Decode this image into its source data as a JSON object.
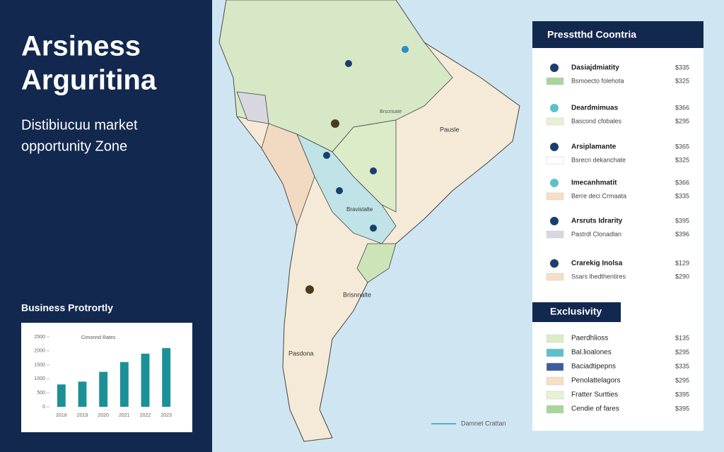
{
  "header": {
    "title_lines": [
      "Arsiness",
      "Arguritina"
    ],
    "subtitle_lines": [
      "Distibiucuu market",
      "opportunity Zone"
    ]
  },
  "sidebar_chart": {
    "title": "Business Protrortly",
    "chart_data": {
      "type": "bar",
      "legend": "Cimonnd Rates",
      "categories": [
        "2018",
        "2019",
        "2020",
        "2021",
        "2022",
        "2023"
      ],
      "values": [
        800,
        900,
        1250,
        1600,
        1900,
        2100
      ],
      "color": "#1b9197",
      "ylim": [
        0,
        2500
      ],
      "yticks": [
        0,
        500,
        1000,
        1500,
        2000,
        2500
      ]
    }
  },
  "map": {
    "labels": [
      "Pausle",
      "Brscrisate",
      "Bravistalte",
      "Brisnnalte",
      "Pasdona"
    ],
    "caption": "Damnet Crattan"
  },
  "panel": {
    "title": "Presstthd Coontria",
    "entries": [
      {
        "name": "Dasiajdmiatity",
        "detail": "Bsmoecto folehota",
        "price": "$335",
        "price2": "$325"
      },
      {
        "name": "Deardmimuas",
        "detail": "Bascond cfobales",
        "price": "$366",
        "price2": "$295"
      },
      {
        "name": "Arsiplamante",
        "detail": "Bsrecn dekanchate",
        "price": "$365",
        "price2": "$325"
      },
      {
        "name": "Imecanhmatit",
        "detail": "Berre deci Crmaata",
        "price": "$366",
        "price2": "$335"
      },
      {
        "name": "Arsruts Idrarity",
        "detail": "Pastrdl Clonadlan",
        "price": "$395",
        "price2": "$396"
      },
      {
        "name": "Crarekig Inolsa",
        "detail": "Ssars lhedthentires",
        "price": "$129",
        "price2": "$290"
      }
    ],
    "exclusivity_title": "Exclusivity",
    "exclusivity": [
      {
        "label": "Paerdhlioss",
        "price": "$135",
        "color": "#dcecc9"
      },
      {
        "label": "Bal.lioalones",
        "price": "$295",
        "color": "#5cc0c8"
      },
      {
        "label": "Baciadtipepns",
        "price": "$335",
        "color": "#3d5c9c"
      },
      {
        "label": "Penolattelagors",
        "price": "$295",
        "color": "#f7dfc6"
      },
      {
        "label": "Fratter Surtties",
        "price": "$395",
        "color": "#e7f1d3"
      },
      {
        "label": "Cendie of fares",
        "price": "$395",
        "color": "#a9d49b"
      }
    ]
  }
}
